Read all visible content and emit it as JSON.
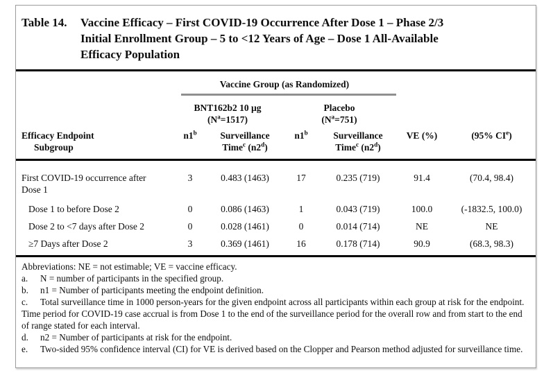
{
  "caption": {
    "label": "Table 14.",
    "title_lines": [
      "Vaccine Efficacy – First COVID-19 Occurrence After Dose 1 – Phase 2/3",
      "Initial Enrollment Group – 5 to <12 Years of Age – Dose 1 All-Available",
      "Efficacy Population"
    ]
  },
  "header": {
    "group_title": "Vaccine Group (as Randomized)",
    "groups": [
      {
        "name": "BNT162b2 10 µg",
        "n_pre": "(N",
        "n_sup": "a",
        "n_post": "=1517)"
      },
      {
        "name": "Placebo",
        "n_pre": "(N",
        "n_sup": "a",
        "n_post": "=751)"
      }
    ],
    "columns": {
      "endpoint_line1": "Efficacy Endpoint",
      "endpoint_line2": "Subgroup",
      "n1_base": "n1",
      "n1_sup": "b",
      "surv_line1": "Surveillance",
      "surv_time_base": "Time",
      "surv_time_sup": "c",
      "surv_n2_mid": " (n2",
      "surv_n2_sup": "d",
      "surv_close": ")",
      "ve_label": "VE (%)",
      "ci_pre": "(95% CI",
      "ci_sup": "e",
      "ci_close": ")"
    }
  },
  "rows": [
    {
      "label": "First COVID-19 occurrence after Dose 1",
      "level": "main",
      "bnt_n1": "3",
      "bnt_surv": "0.483 (1463)",
      "pbo_n1": "17",
      "pbo_surv": "0.235 (719)",
      "ve": "91.4",
      "ci": "(70.4, 98.4)"
    },
    {
      "label": "Dose 1 to before Dose 2",
      "level": "sub",
      "bnt_n1": "0",
      "bnt_surv": "0.086 (1463)",
      "pbo_n1": "1",
      "pbo_surv": "0.043 (719)",
      "ve": "100.0",
      "ci": "(-1832.5, 100.0)"
    },
    {
      "label": "Dose 2 to <7 days after Dose 2",
      "level": "sub",
      "bnt_n1": "0",
      "bnt_surv": "0.028 (1461)",
      "pbo_n1": "0",
      "pbo_surv": "0.014 (714)",
      "ve": "NE",
      "ci": "NE"
    },
    {
      "label": "≥7 Days after Dose 2",
      "level": "sub",
      "bnt_n1": "3",
      "bnt_surv": "0.369 (1461)",
      "pbo_n1": "16",
      "pbo_surv": "0.178 (714)",
      "ve": "90.9",
      "ci": "(68.3, 98.3)"
    }
  ],
  "footnotes": {
    "abbreviations": "Abbreviations: NE = not estimable; VE = vaccine efficacy.",
    "items": [
      {
        "marker": "a.",
        "text": "N = number of participants in the specified group."
      },
      {
        "marker": "b.",
        "text": "n1 = Number of participants meeting the endpoint definition."
      },
      {
        "marker": "c.",
        "text": "Total surveillance time in 1000 person-years for the given endpoint across all participants within each group at risk for the endpoint. Time period for COVID-19 case accrual is from Dose 1 to the end of the surveillance period for the overall row and from start to the end of range stated for each interval."
      },
      {
        "marker": "d.",
        "text": "n2 = Number of participants at risk for the endpoint."
      },
      {
        "marker": "e.",
        "text": "Two-sided 95% confidence interval (CI) for VE is derived based on the Clopper and Pearson method adjusted for surveillance time."
      }
    ]
  },
  "colors": {
    "rule_black": "#000000",
    "underline_gray": "#8f8f8f",
    "border_gray": "#9b9b9b",
    "text": "#0d0d0d"
  }
}
